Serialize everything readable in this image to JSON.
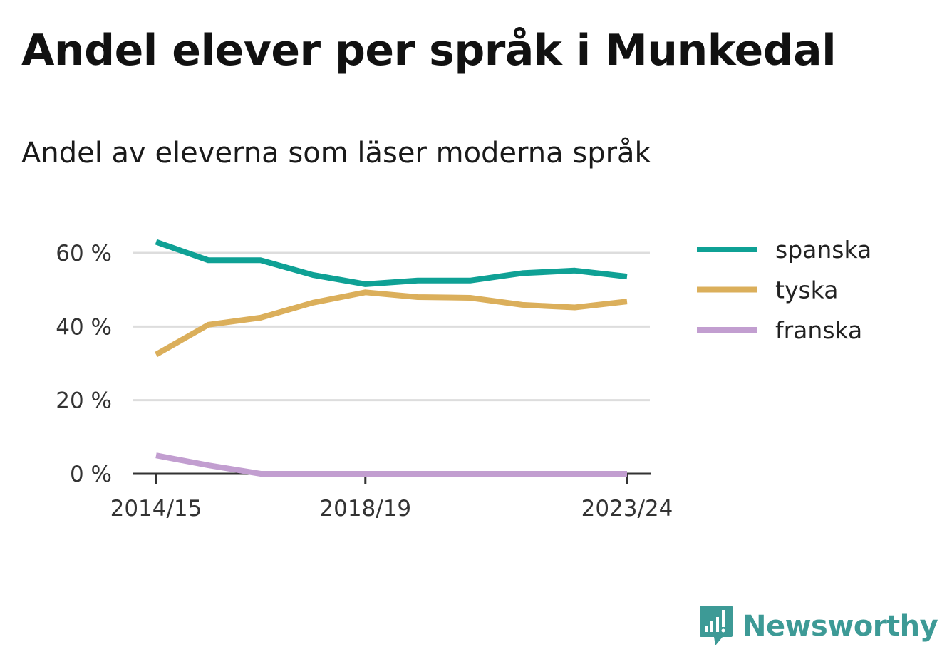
{
  "title": "Andel elever per språk i Munkedal",
  "subtitle": "Andel av eleverna som läser moderna språk",
  "brand": {
    "name": "Newsworthy",
    "color": "#3d9a96",
    "icon": "newsworthy-logo-icon"
  },
  "chart_data": {
    "type": "line",
    "x": [
      "2014/15",
      "2015/16",
      "2016/17",
      "2017/18",
      "2018/19",
      "2019/20",
      "2020/21",
      "2021/22",
      "2022/23",
      "2023/24"
    ],
    "x_tick_labels": [
      "2014/15",
      "2018/19",
      "2023/24"
    ],
    "y_ticks": [
      0,
      20,
      40,
      60
    ],
    "y_tick_labels": [
      "0 %",
      "20 %",
      "40 %",
      "60 %"
    ],
    "ylim": [
      0,
      65
    ],
    "grid": true,
    "legend_position": "right",
    "series": [
      {
        "name": "spanska",
        "color": "#0fa195",
        "values": [
          63,
          58,
          58,
          54,
          51.5,
          52.5,
          52.5,
          54.5,
          55.2,
          53.6
        ]
      },
      {
        "name": "tyska",
        "color": "#dbaf5b",
        "values": [
          32.4,
          40.5,
          42.4,
          46.5,
          49.3,
          48,
          47.8,
          45.9,
          45.2,
          46.8
        ]
      },
      {
        "name": "franska",
        "color": "#c29ed0",
        "values": [
          5,
          2.3,
          0,
          0,
          0,
          0,
          0,
          0,
          0,
          0
        ]
      }
    ]
  }
}
